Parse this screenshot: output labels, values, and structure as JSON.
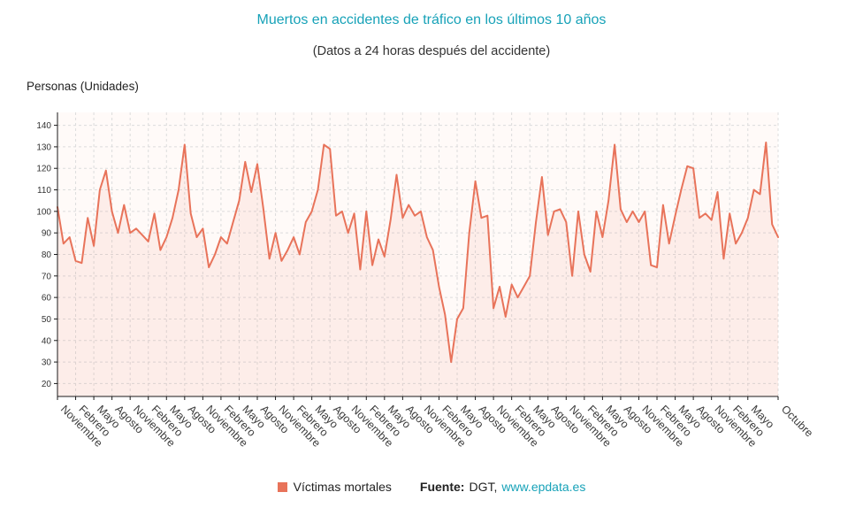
{
  "page": {
    "title": "Muertos en accidentes de tráfico en los últimos 10 años",
    "subtitle": "(Datos a 24 horas después del accidente)",
    "y_axis_unit": "Personas (Unidades)"
  },
  "legend": {
    "series_label": "Víctimas mortales",
    "source_prefix": "Fuente:",
    "source_name": "DGT,",
    "source_link": "www.epdata.es"
  },
  "colors": {
    "accent_teal": "#17a2b8",
    "series": "#e8735a",
    "grid": "#dcdcdc",
    "axis": "#1a1a1a",
    "plot_background": "#fffaf8",
    "area_fill_opacity": 0.09
  },
  "chart_data": {
    "type": "line",
    "title": "Muertos en accidentes de tráfico en los últimos 10 años",
    "subtitle": "(Datos a 24 horas después del accidente)",
    "ylabel": "Personas (Unidades)",
    "ylim": [
      14,
      146
    ],
    "y_ticks": [
      20,
      30,
      40,
      50,
      60,
      70,
      80,
      90,
      100,
      110,
      120,
      130,
      140
    ],
    "grid": true,
    "legend_position": "bottom",
    "series": [
      {
        "name": "Víctimas mortales",
        "values": [
          102,
          85,
          88,
          77,
          76,
          97,
          84,
          110,
          119,
          100,
          90,
          103,
          90,
          92,
          89,
          86,
          99,
          82,
          88,
          97,
          110,
          131,
          99,
          88,
          92,
          74,
          80,
          88,
          85,
          95,
          105,
          123,
          109,
          122,
          101,
          78,
          90,
          77,
          82,
          88,
          80,
          95,
          100,
          110,
          131,
          129,
          98,
          100,
          90,
          99,
          73,
          100,
          75,
          87,
          79,
          96,
          117,
          97,
          103,
          98,
          100,
          88,
          82,
          65,
          52,
          30,
          50,
          55,
          90,
          114,
          97,
          98,
          55,
          65,
          51,
          66,
          60,
          65,
          70,
          95,
          116,
          89,
          100,
          101,
          95,
          70,
          100,
          80,
          72,
          100,
          88,
          105,
          131,
          101,
          95,
          100,
          95,
          100,
          75,
          74,
          103,
          85,
          98,
          110,
          121,
          120,
          97,
          99,
          96,
          109,
          78,
          99,
          85,
          90,
          97,
          110,
          108,
          132,
          94,
          88
        ]
      }
    ],
    "x_ticks": [
      {
        "i": 0,
        "label": "Noviembre"
      },
      {
        "i": 3,
        "label": "Febrero"
      },
      {
        "i": 6,
        "label": "Mayo"
      },
      {
        "i": 9,
        "label": "Agosto"
      },
      {
        "i": 12,
        "label": "Noviembre"
      },
      {
        "i": 15,
        "label": "Febrero"
      },
      {
        "i": 18,
        "label": "Mayo"
      },
      {
        "i": 21,
        "label": "Agosto"
      },
      {
        "i": 24,
        "label": "Noviembre"
      },
      {
        "i": 27,
        "label": "Febrero"
      },
      {
        "i": 30,
        "label": "Mayo"
      },
      {
        "i": 33,
        "label": "Agosto"
      },
      {
        "i": 36,
        "label": "Noviembre"
      },
      {
        "i": 39,
        "label": "Febrero"
      },
      {
        "i": 42,
        "label": "Mayo"
      },
      {
        "i": 45,
        "label": "Agosto"
      },
      {
        "i": 48,
        "label": "Noviembre"
      },
      {
        "i": 51,
        "label": "Febrero"
      },
      {
        "i": 54,
        "label": "Mayo"
      },
      {
        "i": 57,
        "label": "Agosto"
      },
      {
        "i": 60,
        "label": "Noviembre"
      },
      {
        "i": 63,
        "label": "Febrero"
      },
      {
        "i": 66,
        "label": "Mayo"
      },
      {
        "i": 69,
        "label": "Agosto"
      },
      {
        "i": 72,
        "label": "Noviembre"
      },
      {
        "i": 75,
        "label": "Febrero"
      },
      {
        "i": 78,
        "label": "Mayo"
      },
      {
        "i": 81,
        "label": "Agosto"
      },
      {
        "i": 84,
        "label": "Noviembre"
      },
      {
        "i": 87,
        "label": "Febrero"
      },
      {
        "i": 90,
        "label": "Mayo"
      },
      {
        "i": 93,
        "label": "Agosto"
      },
      {
        "i": 96,
        "label": "Noviembre"
      },
      {
        "i": 99,
        "label": "Febrero"
      },
      {
        "i": 102,
        "label": "Mayo"
      },
      {
        "i": 105,
        "label": "Agosto"
      },
      {
        "i": 108,
        "label": "Noviembre"
      },
      {
        "i": 111,
        "label": "Febrero"
      },
      {
        "i": 114,
        "label": "Mayo"
      },
      {
        "i": 119,
        "label": "Octubre"
      }
    ]
  }
}
